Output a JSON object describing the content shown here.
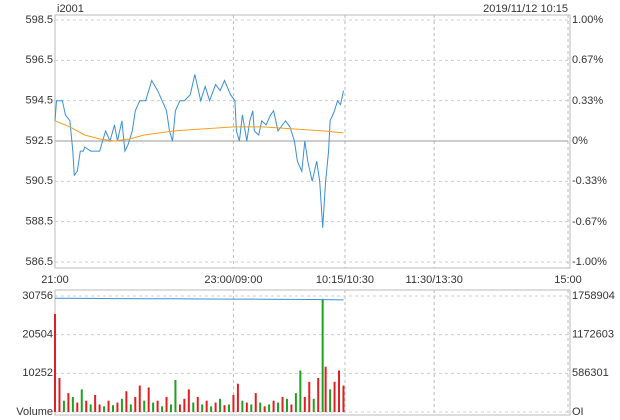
{
  "header": {
    "symbol": "i2001",
    "datetime": "2019/11/12 10:15"
  },
  "chart_data": [
    {
      "type": "line",
      "xlim": [
        0,
        345
      ],
      "xticks": [
        {
          "value": 0,
          "label": "21:00"
        },
        {
          "value": 120,
          "label": "23:00/09:00"
        },
        {
          "value": 195,
          "label": "10:15/10:30"
        },
        {
          "value": 255,
          "label": "11:30/13:30"
        },
        {
          "value": 345,
          "label": "15:00"
        }
      ],
      "ylim": [
        586.5,
        598.5
      ],
      "yticks": [
        586.5,
        588.5,
        590.5,
        592.5,
        594.5,
        596.5,
        598.5
      ],
      "y2lim": [
        -1,
        1
      ],
      "y2ticks": [
        {
          "value": -1,
          "label": "-1.00%"
        },
        {
          "value": -0.67,
          "label": "-0.67%"
        },
        {
          "value": -0.33,
          "label": "-0.33%"
        },
        {
          "value": 0,
          "label": "0%"
        },
        {
          "value": 0.33,
          "label": "0.33%"
        },
        {
          "value": 0.67,
          "label": "0.67%"
        },
        {
          "value": 1,
          "label": "1.00%"
        }
      ],
      "base": 592.5,
      "grid": true,
      "series": [
        {
          "color": "#3a8fd8",
          "x": [
            0,
            1,
            3,
            5,
            7,
            10,
            12,
            13,
            15,
            17,
            19,
            20,
            24,
            30,
            32,
            34,
            37,
            40,
            42,
            45,
            47,
            49,
            52,
            54,
            57,
            61,
            63,
            65,
            69,
            72,
            75,
            77,
            79,
            81,
            84,
            87,
            91,
            94,
            98,
            101,
            104,
            108,
            111,
            114,
            118,
            121,
            122,
            124,
            126,
            129,
            131,
            133,
            134,
            137,
            139,
            142,
            145,
            147,
            150,
            155,
            158,
            161,
            163,
            166,
            168,
            170,
            173,
            176,
            178,
            180,
            182,
            184,
            185,
            188,
            190,
            192,
            194
          ],
          "values": [
            593.5,
            594.5,
            594.5,
            594.5,
            593.8,
            593.5,
            592,
            590.8,
            591,
            592,
            592,
            592.2,
            592,
            592,
            592.5,
            593,
            592.5,
            593.3,
            592.5,
            593.5,
            592,
            592.3,
            593,
            594,
            594.5,
            594.5,
            595,
            595.5,
            595,
            594.5,
            594,
            593,
            592.5,
            594,
            594.5,
            594.5,
            594.8,
            595.8,
            594.5,
            595.2,
            594.5,
            595.3,
            595,
            595.5,
            594.8,
            594.5,
            593,
            592.5,
            593.8,
            592.5,
            593.5,
            594,
            593,
            592.8,
            593.5,
            593.3,
            593.8,
            594,
            593,
            593.5,
            593.2,
            592.5,
            591.5,
            591,
            592.5,
            591.5,
            590.5,
            591.5,
            590.5,
            588.2,
            590.5,
            592,
            593.5,
            594,
            594.5,
            594.3,
            595
          ]
        },
        {
          "color": "#f0a020",
          "x": [
            0,
            10,
            20,
            30,
            40,
            50,
            60,
            80,
            100,
            120,
            140,
            160,
            180,
            194
          ],
          "values": [
            593.5,
            593.2,
            592.8,
            592.6,
            592.5,
            592.6,
            592.8,
            593.0,
            593.1,
            593.2,
            593.2,
            593.1,
            593.0,
            592.9
          ]
        }
      ]
    },
    {
      "type": "bar",
      "xlim": [
        0,
        345
      ],
      "xticks": [
        {
          "value": 0,
          "label": "21:00"
        },
        {
          "value": 120,
          "label": "23:00/09:00"
        },
        {
          "value": 195,
          "label": "10:15/10:30"
        },
        {
          "value": 255,
          "label": "11:30/13:30"
        },
        {
          "value": 345,
          "label": "15:00"
        }
      ],
      "ylim": [
        0,
        30756
      ],
      "yticks": [
        {
          "value": 0,
          "label": "Volume"
        },
        10252,
        20504,
        30756
      ],
      "y2lim": [
        0,
        1758904
      ],
      "y2ticks": [
        {
          "value": 0,
          "label": "OI"
        },
        586301,
        1172603,
        1758904
      ],
      "series": [
        {
          "x": [
            0,
            3,
            6,
            9,
            12,
            15,
            18,
            21,
            24,
            27,
            30,
            33,
            36,
            39,
            42,
            45,
            48,
            51,
            54,
            57,
            60,
            63,
            66,
            69,
            72,
            75,
            78,
            81,
            84,
            87,
            90,
            93,
            96,
            99,
            102,
            105,
            108,
            111,
            114,
            117,
            120,
            123,
            126,
            129,
            132,
            135,
            138,
            141,
            144,
            147,
            150,
            153,
            156,
            159,
            162,
            165,
            168,
            171,
            174,
            177,
            180,
            182,
            185,
            188,
            191,
            194
          ],
          "values": [
            26000,
            9000,
            3000,
            5000,
            4000,
            2500,
            6000,
            3000,
            2000,
            4500,
            2000,
            1500,
            3000,
            1800,
            2500,
            3500,
            5500,
            2000,
            4000,
            7000,
            3000,
            6500,
            2500,
            3000,
            1500,
            4000,
            2000,
            8500,
            2000,
            3500,
            6000,
            2500,
            4000,
            2000,
            3000,
            1500,
            2500,
            3500,
            1800,
            2000,
            4500,
            7500,
            3000,
            2500,
            2000,
            5000,
            2500,
            1500,
            2000,
            3000,
            2500,
            4000,
            3500,
            2000,
            5000,
            11000,
            4000,
            8000,
            3500,
            9000,
            30000,
            12000,
            6000,
            8000,
            11000,
            7000
          ],
          "colors": [
            "#e02020",
            "#e02020",
            "#20a020",
            "#e02020",
            "#20a020",
            "#e02020",
            "#20a020",
            "#e02020",
            "#20a020",
            "#e02020",
            "#e02020",
            "#20a020",
            "#e02020",
            "#20a020",
            "#e02020",
            "#20a020",
            "#e02020",
            "#20a020",
            "#e02020",
            "#e02020",
            "#20a020",
            "#e02020",
            "#20a020",
            "#e02020",
            "#20a020",
            "#e02020",
            "#20a020",
            "#20a020",
            "#e02020",
            "#e02020",
            "#e02020",
            "#20a020",
            "#e02020",
            "#20a020",
            "#e02020",
            "#20a020",
            "#e02020",
            "#20a020",
            "#e02020",
            "#20a020",
            "#e02020",
            "#e02020",
            "#20a020",
            "#e02020",
            "#20a020",
            "#e02020",
            "#20a020",
            "#e02020",
            "#20a020",
            "#e02020",
            "#20a020",
            "#e02020",
            "#20a020",
            "#e02020",
            "#20a020",
            "#20a020",
            "#e02020",
            "#e02020",
            "#20a020",
            "#e02020",
            "#20a020",
            "#e02020",
            "#20a020",
            "#e02020",
            "#e02020",
            "#e02020"
          ]
        },
        {
          "axis": "y2",
          "color": "#3a8fd8",
          "x": [
            0,
            20,
            40,
            60,
            80,
            100,
            120,
            140,
            160,
            180,
            194
          ],
          "values": [
            1725000,
            1722000,
            1720000,
            1718000,
            1716000,
            1714000,
            1712000,
            1710000,
            1708000,
            1705000,
            1700000
          ]
        }
      ]
    }
  ]
}
